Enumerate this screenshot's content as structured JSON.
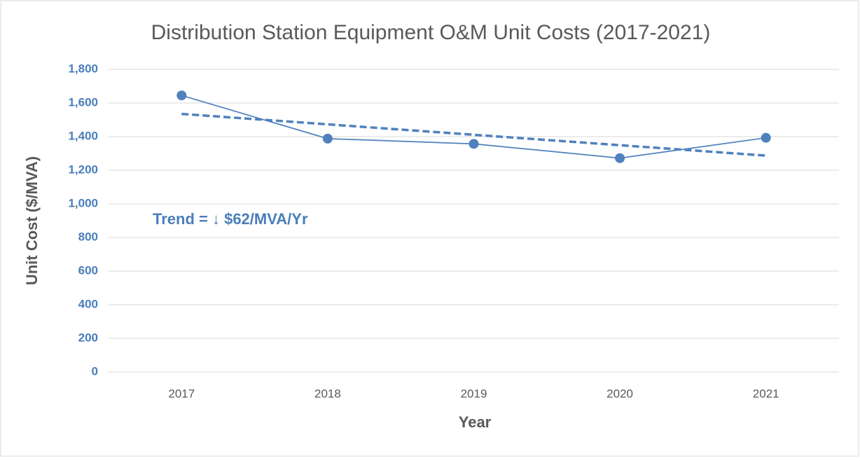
{
  "chart_data": {
    "type": "line",
    "title": "Distribution Station Equipment O&M Unit Costs (2017-2021)",
    "x_label": "Year",
    "y_label": "Unit Cost ($/MVA)",
    "annotation": "Trend = ↓ $62/MVA/Yr",
    "categories": [
      "2017",
      "2018",
      "2019",
      "2020",
      "2021"
    ],
    "series": [
      {
        "color": "#4f81bd",
        "values": [
          1645,
          1388,
          1357,
          1272,
          1393
        ],
        "markers": true,
        "dashed": false
      },
      {
        "color": "#4f81bd",
        "values": [
          1535,
          1473,
          1411,
          1349,
          1287
        ],
        "markers": false,
        "dashed": true
      }
    ],
    "ylim": [
      0,
      1800
    ],
    "yticks": [
      0,
      200,
      400,
      600,
      800,
      {
        "value": 1000,
        "label": "1,000"
      },
      {
        "value": 1200,
        "label": "1,200"
      },
      {
        "value": 1400,
        "label": "1,400"
      },
      {
        "value": 1600,
        "label": "1,600"
      },
      {
        "value": 1800,
        "label": "1,800"
      }
    ],
    "grid": true
  }
}
